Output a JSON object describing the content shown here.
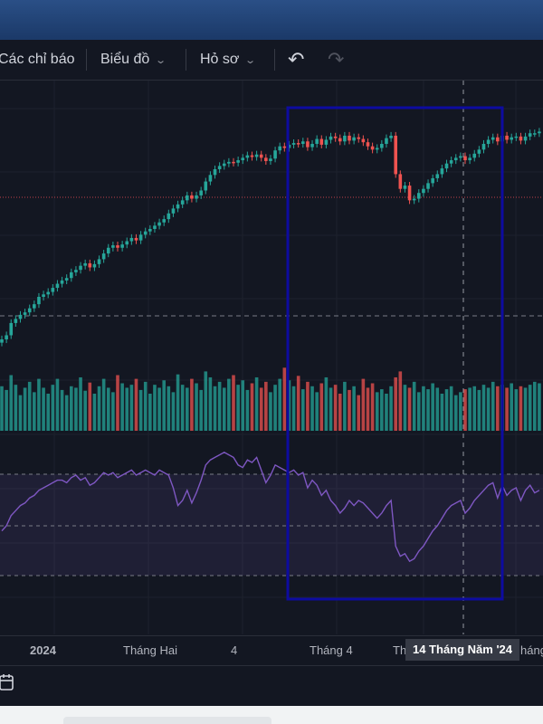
{
  "toolbar": {
    "indicators_label": "Các chỉ báo",
    "chart_type_label": "Biểu đồ",
    "profile_label": "Hỏ sơ",
    "undo_icon": "undo-icon",
    "redo_icon": "redo-icon"
  },
  "time_axis": {
    "labels": [
      "2024",
      "Tháng Hai",
      "4",
      "Tháng 4",
      "Th",
      "háng"
    ],
    "crosshair_tooltip": "14 Tháng Năm '24"
  },
  "bottom_bar": {
    "calendar_icon": "calendar-icon"
  },
  "colors": {
    "background": "#131722",
    "up_candle": "#26a69a",
    "down_candle": "#ef5350",
    "rsi_line": "#7e57c2",
    "rsi_band": "rgba(126,87,194,0.12)",
    "highlight_box": "#0d0ba0",
    "price_line": "#c2424a"
  },
  "chart_data": {
    "type": "candlestick",
    "panes": [
      "price",
      "volume",
      "rsi"
    ],
    "price_closes": [
      14,
      14.5,
      16,
      16.5,
      17,
      17.3,
      17.8,
      18.3,
      19.2,
      19.5,
      19.8,
      20.3,
      20.8,
      21.2,
      21.5,
      22.2,
      22.5,
      23,
      23.3,
      22.8,
      23.2,
      23.8,
      24.5,
      25.2,
      25.5,
      25.2,
      25.6,
      26,
      26.4,
      26.1,
      26.8,
      27.2,
      27.5,
      27.9,
      28.3,
      28.7,
      29.4,
      30,
      30.5,
      31,
      31.6,
      31.2,
      31.6,
      32.2,
      33.3,
      34.1,
      34.8,
      35.2,
      35.5,
      35.7,
      35.6,
      35.9,
      36.2,
      36.5,
      36.3,
      36.6,
      36.2,
      35.8,
      36.1,
      37.1,
      37.6,
      37.4,
      37.8,
      38,
      37.9,
      38.2,
      37.5,
      37.9,
      38.5,
      37.8,
      38.4,
      38.8,
      38.6,
      38.2,
      38.9,
      38.3,
      38.7,
      38.5,
      38.1,
      37.6,
      37.2,
      37.4,
      37.9,
      38.6,
      38.9,
      34.2,
      32.4,
      32.8,
      31,
      31.2,
      31.9,
      32.4,
      33.1,
      33.7,
      34.2,
      34.9,
      35.5,
      35.9,
      36.2,
      36.4,
      35.9,
      36.2,
      36.7,
      37.2,
      37.9,
      38.4,
      38.7,
      38.2,
      38.9,
      38.4,
      38.7,
      38.8,
      38.3,
      38.8,
      39.2,
      39.2,
      39.4
    ],
    "rsi_values": [
      48,
      50,
      54,
      56,
      58,
      59,
      61,
      62,
      64,
      65,
      66,
      67,
      68,
      68,
      67,
      69,
      70,
      68,
      69,
      66,
      67,
      69,
      71,
      70,
      71,
      69,
      70,
      71,
      72,
      70,
      71,
      72,
      71,
      70,
      72,
      71,
      70,
      65,
      58,
      60,
      64,
      59,
      63,
      68,
      74,
      76,
      77,
      78,
      79,
      78,
      77,
      74,
      73,
      76,
      75,
      77,
      72,
      67,
      70,
      74,
      73,
      72,
      71,
      72,
      70,
      71,
      65,
      68,
      66,
      62,
      64,
      60,
      58,
      55,
      57,
      60,
      58,
      60,
      59,
      57,
      55,
      53,
      55,
      58,
      60,
      42,
      38,
      39,
      36,
      37,
      40,
      42,
      45,
      48,
      50,
      53,
      56,
      58,
      59,
      60,
      55,
      57,
      60,
      62,
      64,
      66,
      67,
      61,
      66,
      62,
      64,
      65,
      60,
      64,
      66,
      63,
      64
    ],
    "rsi_guides": [
      70,
      50,
      30
    ],
    "volumes": [
      60,
      55,
      75,
      62,
      48,
      58,
      66,
      52,
      70,
      58,
      50,
      62,
      70,
      55,
      48,
      60,
      58,
      72,
      54,
      65,
      50,
      60,
      70,
      58,
      52,
      75,
      64,
      58,
      62,
      70,
      55,
      66,
      50,
      62,
      58,
      68,
      60,
      52,
      76,
      62,
      58,
      70,
      64,
      55,
      80,
      72,
      60,
      66,
      58,
      70,
      75,
      62,
      68,
      55,
      64,
      72,
      58,
      66,
      52,
      62,
      70,
      85,
      68,
      60,
      74,
      56,
      66,
      60,
      52,
      64,
      72,
      58,
      62,
      50,
      66,
      55,
      60,
      48,
      70,
      58,
      64,
      52,
      56,
      50,
      60,
      72,
      80,
      62,
      58,
      66,
      52,
      60,
      56,
      64,
      58,
      50,
      56,
      60,
      48,
      52,
      56,
      58,
      60,
      55,
      62,
      58,
      66,
      60,
      62,
      58,
      64,
      56,
      60,
      58,
      62,
      66,
      64
    ],
    "crosshair_date": "14 Tháng Năm '24"
  }
}
